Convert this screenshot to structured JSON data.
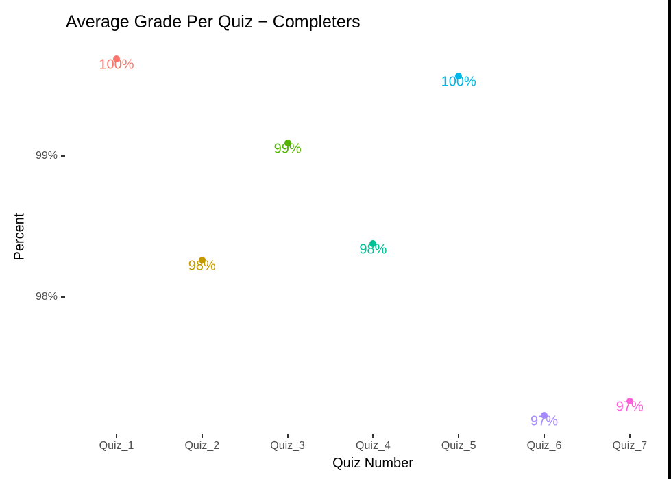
{
  "chart_data": {
    "type": "scatter",
    "title": "Average Grade Per Quiz − Completers",
    "xlabel": "Quiz Number",
    "ylabel": "Percent",
    "categories": [
      "Quiz_1",
      "Quiz_2",
      "Quiz_3",
      "Quiz_4",
      "Quiz_5",
      "Quiz_6",
      "Quiz_7"
    ],
    "values": [
      99.69,
      98.26,
      99.09,
      98.38,
      99.57,
      97.16,
      97.26
    ],
    "data_labels": [
      "100%",
      "98%",
      "99%",
      "98%",
      "100%",
      "97%",
      "97%"
    ],
    "colors": [
      "#F8766D",
      "#C49A00",
      "#53B400",
      "#00C094",
      "#00B6EB",
      "#A58AFF",
      "#FB61D7"
    ],
    "y_ticks": [
      {
        "value": 98,
        "label": "98%"
      },
      {
        "value": 99,
        "label": "99%"
      }
    ],
    "ylim": [
      96.9,
      99.8
    ],
    "grid": false,
    "legend": "none"
  }
}
